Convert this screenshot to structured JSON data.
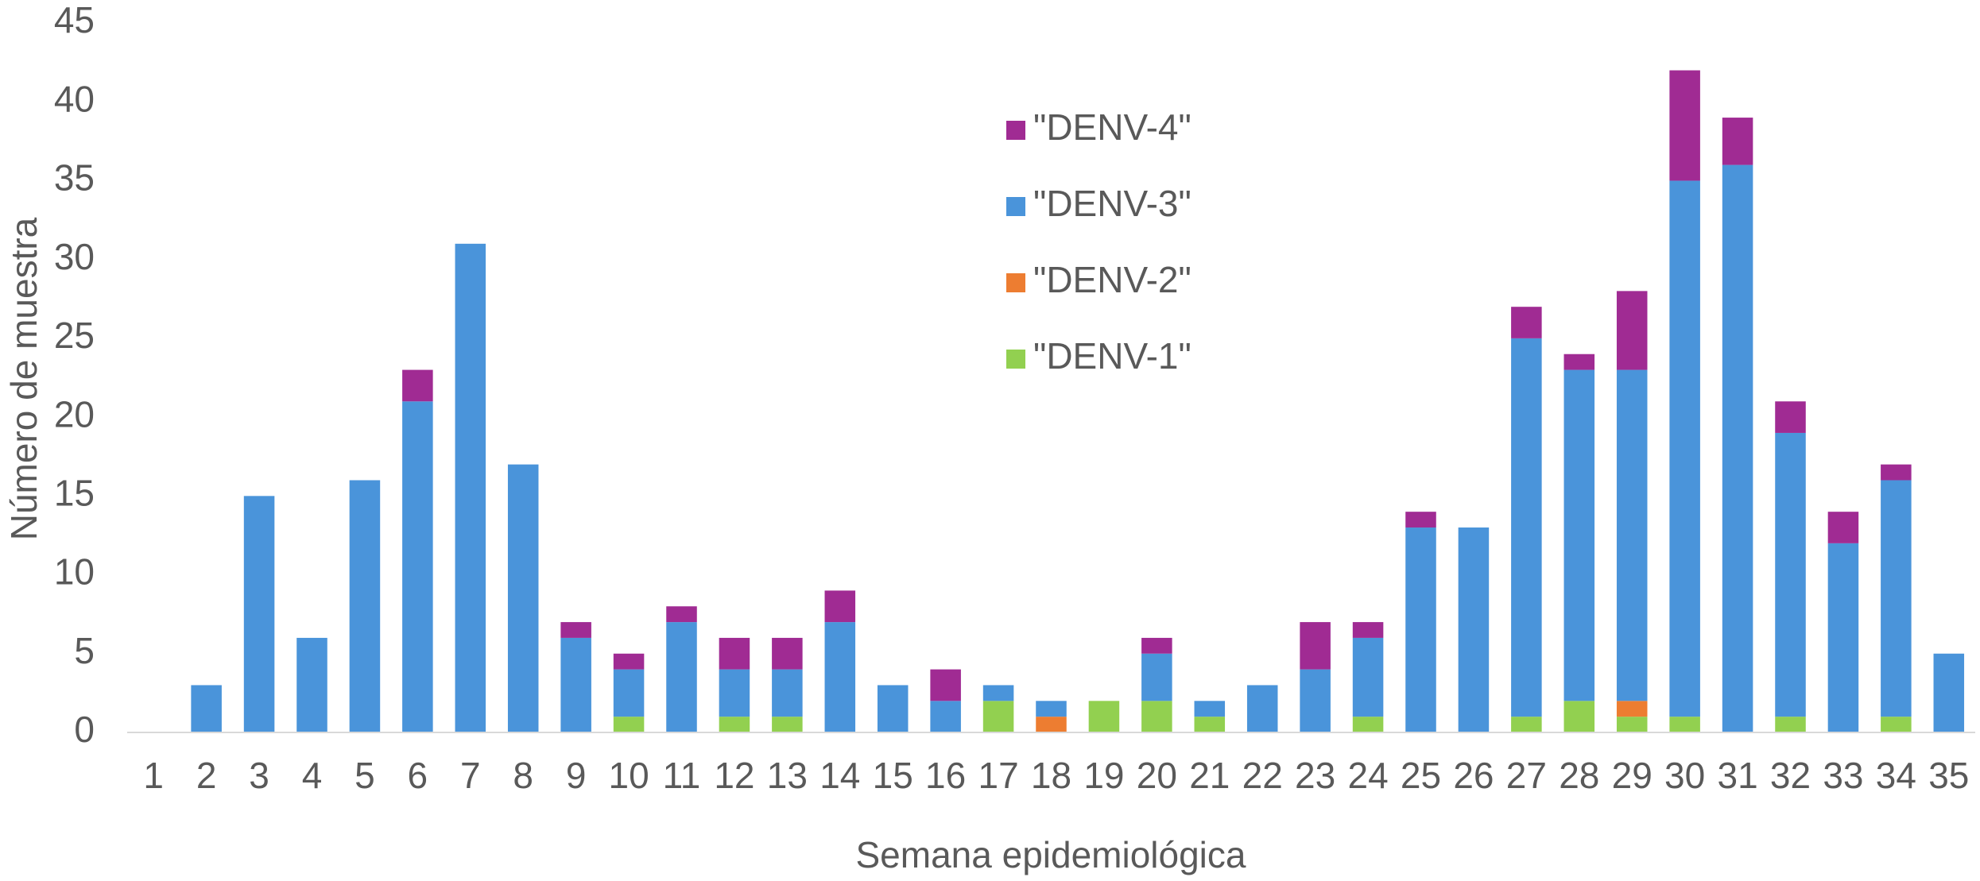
{
  "chart_data": {
    "type": "stacked_bar",
    "xlabel": "Semana epidemiológica",
    "ylabel": "Número de muestra",
    "categories": [
      "1",
      "2",
      "3",
      "4",
      "5",
      "6",
      "7",
      "8",
      "9",
      "10",
      "11",
      "12",
      "13",
      "14",
      "15",
      "16",
      "17",
      "18",
      "19",
      "20",
      "21",
      "22",
      "23",
      "24",
      "25",
      "26",
      "27",
      "28",
      "29",
      "30",
      "31",
      "32",
      "33",
      "34",
      "35"
    ],
    "series": [
      {
        "name": "\"DENV-1\"",
        "color": "#92d050",
        "values": [
          0,
          0,
          0,
          0,
          0,
          0,
          0,
          0,
          0,
          1,
          0,
          1,
          1,
          0,
          0,
          0,
          2,
          0,
          2,
          2,
          1,
          0,
          0,
          1,
          0,
          0,
          1,
          2,
          1,
          1,
          0,
          1,
          0,
          1,
          0
        ]
      },
      {
        "name": "\"DENV-2\"",
        "color": "#ed7d31",
        "values": [
          0,
          0,
          0,
          0,
          0,
          0,
          0,
          0,
          0,
          0,
          0,
          0,
          0,
          0,
          0,
          0,
          0,
          1,
          0,
          0,
          0,
          0,
          0,
          0,
          0,
          0,
          0,
          0,
          1,
          0,
          0,
          0,
          0,
          0,
          0
        ]
      },
      {
        "name": "\"DENV-3\"",
        "color": "#4a94da",
        "values": [
          0,
          3,
          15,
          6,
          16,
          21,
          31,
          17,
          6,
          3,
          7,
          3,
          3,
          7,
          3,
          2,
          1,
          1,
          0,
          3,
          1,
          3,
          4,
          5,
          13,
          13,
          24,
          21,
          21,
          34,
          36,
          18,
          12,
          15,
          5
        ]
      },
      {
        "name": "\"DENV-4\"",
        "color": "#a02b93",
        "values": [
          0,
          0,
          0,
          0,
          0,
          2,
          0,
          0,
          1,
          1,
          1,
          2,
          2,
          2,
          0,
          2,
          0,
          0,
          0,
          1,
          0,
          0,
          3,
          1,
          1,
          0,
          2,
          1,
          5,
          7,
          3,
          2,
          2,
          1,
          0
        ]
      }
    ],
    "ylim": [
      0,
      45
    ],
    "yticks": [
      0,
      5,
      10,
      15,
      20,
      25,
      30,
      35,
      40,
      45
    ]
  }
}
